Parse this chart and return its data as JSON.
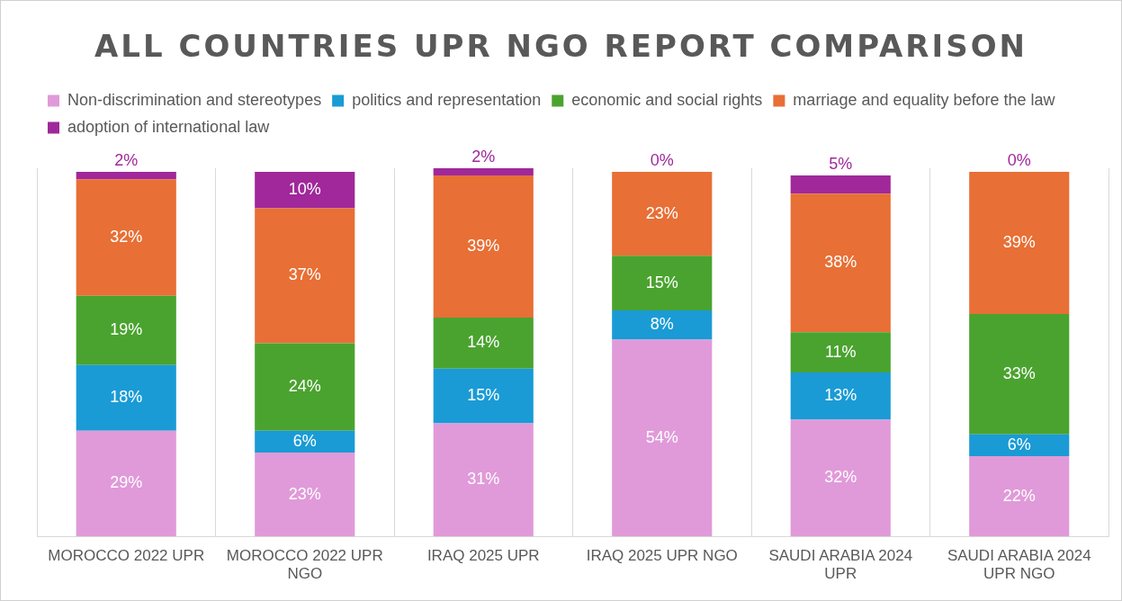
{
  "chart_data": {
    "type": "bar",
    "title": "ALL COUNTRIES UPR NGO REPORT COMPARISON",
    "categories": [
      "MOROCCO 2022 UPR",
      "MOROCCO 2022 UPR NGO",
      "IRAQ 2025 UPR",
      "IRAQ 2025 UPR NGO",
      "SAUDI ARABIA 2024 UPR",
      "SAUDI ARABIA 2024 UPR NGO"
    ],
    "stacked": true,
    "ylim": [
      0,
      101
    ],
    "tick_labels": "x",
    "grid": "x",
    "legend": "top",
    "data_labels": true,
    "series": [
      {
        "name": "Non-discrimination and stereotypes",
        "color": "#e09ad9",
        "values": [
          29,
          23,
          31,
          54,
          32,
          22
        ],
        "value_labels": [
          "29%",
          "23%",
          "31%",
          "54%",
          "32%",
          "22%"
        ]
      },
      {
        "name": "politics and representation",
        "color": "#1a9bd5",
        "values": [
          18,
          6,
          15,
          8,
          13,
          6
        ],
        "value_labels": [
          "18%",
          "6%",
          "15%",
          "8%",
          "13%",
          "6%"
        ]
      },
      {
        "name": "economic and social rights",
        "color": "#4aa32f",
        "values": [
          19,
          24,
          14,
          15,
          11,
          33
        ],
        "value_labels": [
          "19%",
          "24%",
          "14%",
          "15%",
          "11%",
          "33%"
        ]
      },
      {
        "name": "marriage and equality before the law",
        "color": "#e86f35",
        "values": [
          32,
          37,
          39,
          23,
          38,
          39
        ],
        "value_labels": [
          "32%",
          "37%",
          "39%",
          "23%",
          "38%",
          "39%"
        ]
      },
      {
        "name": "adoption of international law",
        "color": "#a0289a",
        "values": [
          2,
          10,
          2,
          0,
          5,
          0
        ],
        "value_labels": [
          "2%",
          "10%",
          "2%",
          "0%",
          "5%",
          "0%"
        ]
      }
    ]
  }
}
